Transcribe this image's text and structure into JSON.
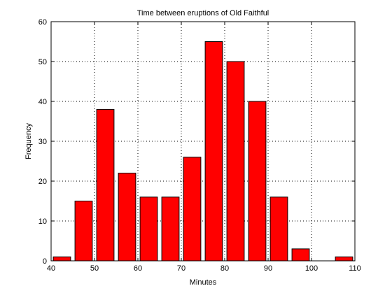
{
  "chart_data": {
    "type": "bar",
    "title": "Time between eruptions of Old Faithful",
    "xlabel": "Minutes",
    "ylabel": "Frequency",
    "xlim": [
      40,
      110
    ],
    "ylim": [
      0,
      60
    ],
    "xticks": [
      40,
      50,
      60,
      70,
      80,
      90,
      100,
      110
    ],
    "yticks": [
      0,
      10,
      20,
      30,
      40,
      50,
      60
    ],
    "grid": true,
    "bar_color": "#ff0000",
    "bins": [
      {
        "center": 42.5,
        "value": 1
      },
      {
        "center": 47.5,
        "value": 15
      },
      {
        "center": 52.5,
        "value": 38
      },
      {
        "center": 57.5,
        "value": 22
      },
      {
        "center": 62.5,
        "value": 16
      },
      {
        "center": 67.5,
        "value": 16
      },
      {
        "center": 72.5,
        "value": 26
      },
      {
        "center": 77.5,
        "value": 55
      },
      {
        "center": 82.5,
        "value": 50
      },
      {
        "center": 87.5,
        "value": 40
      },
      {
        "center": 92.5,
        "value": 16
      },
      {
        "center": 97.5,
        "value": 3
      },
      {
        "center": 102.5,
        "value": 0
      },
      {
        "center": 107.5,
        "value": 1
      }
    ]
  }
}
